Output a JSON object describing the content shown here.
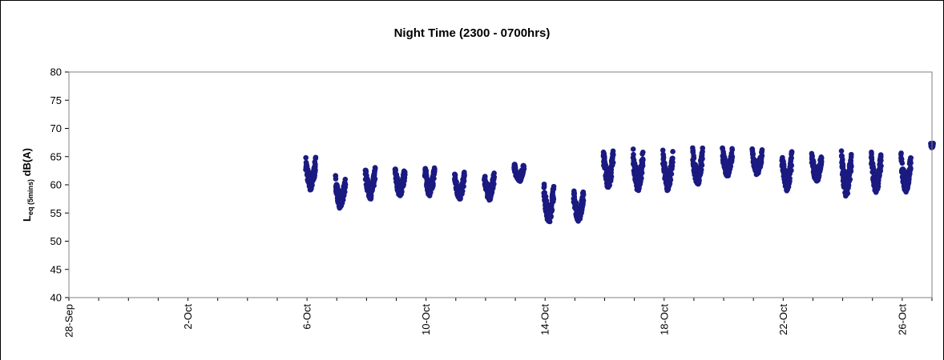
{
  "chart_data": {
    "type": "scatter",
    "title": "Night Time (2300 - 0700hrs)",
    "ylabel_main": "L",
    "ylabel_sub": "eq (5mins)",
    "ylabel_unit": " dB(A)",
    "xlabel": "",
    "ylim": [
      40,
      80
    ],
    "yticks": [
      40,
      45,
      50,
      55,
      60,
      65,
      70,
      75,
      80
    ],
    "xlim": [
      "2023-09-28",
      "2023-10-27"
    ],
    "xtick_labels": [
      "28-Sep",
      "2-Oct",
      "6-Oct",
      "10-Oct",
      "14-Oct",
      "18-Oct",
      "22-Oct",
      "26-Oct"
    ],
    "xtick_dates": [
      "2023-09-28",
      "2023-10-02",
      "2023-10-06",
      "2023-10-10",
      "2023-10-14",
      "2023-10-18",
      "2023-10-22",
      "2023-10-26"
    ],
    "grid": false,
    "legend": "none",
    "marker_color": "#1a1a80",
    "series": [
      {
        "nights": [
          {
            "start": "2023-10-05 23:00",
            "end": "2023-10-06 07:00",
            "low": 59.0,
            "high": 66.0
          },
          {
            "start": "2023-10-06 23:00",
            "end": "2023-10-07 07:00",
            "low": 55.7,
            "high": 62.8
          },
          {
            "start": "2023-10-07 23:00",
            "end": "2023-10-08 07:00",
            "low": 57.5,
            "high": 64.2
          },
          {
            "start": "2023-10-08 23:00",
            "end": "2023-10-09 07:00",
            "low": 58.0,
            "high": 64.3
          },
          {
            "start": "2023-10-09 23:00",
            "end": "2023-10-10 07:00",
            "low": 58.0,
            "high": 64.8
          },
          {
            "start": "2023-10-10 23:00",
            "end": "2023-10-11 07:00",
            "low": 57.4,
            "high": 63.3
          },
          {
            "start": "2023-10-11 23:00",
            "end": "2023-10-12 07:00",
            "low": 57.3,
            "high": 63.3
          },
          {
            "start": "2023-10-12 23:00",
            "end": "2023-10-13 07:00",
            "low": 60.5,
            "high": 64.8
          },
          {
            "start": "2023-10-13 23:00",
            "end": "2023-10-14 07:00",
            "low": 53.3,
            "high": 61.7
          },
          {
            "start": "2023-10-14 23:00",
            "end": "2023-10-15 07:00",
            "low": 53.5,
            "high": 60.3
          },
          {
            "start": "2023-10-15 23:00",
            "end": "2023-10-16 07:00",
            "low": 59.5,
            "high": 67.7
          },
          {
            "start": "2023-10-16 23:00",
            "end": "2023-10-17 07:00",
            "low": 58.8,
            "high": 67.8
          },
          {
            "start": "2023-10-17 23:00",
            "end": "2023-10-18 07:00",
            "low": 59.0,
            "high": 67.2
          },
          {
            "start": "2023-10-18 23:00",
            "end": "2023-10-19 07:00",
            "low": 60.0,
            "high": 67.6
          },
          {
            "start": "2023-10-19 23:00",
            "end": "2023-10-20 07:00",
            "low": 61.5,
            "high": 67.6
          },
          {
            "start": "2023-10-20 23:00",
            "end": "2023-10-21 07:00",
            "low": 61.8,
            "high": 67.2
          },
          {
            "start": "2023-10-21 23:00",
            "end": "2023-10-22 07:00",
            "low": 58.7,
            "high": 67.3
          },
          {
            "start": "2023-10-22 23:00",
            "end": "2023-10-23 07:00",
            "low": 60.5,
            "high": 66.7
          },
          {
            "start": "2023-10-23 23:00",
            "end": "2023-10-24 07:00",
            "low": 58.0,
            "high": 67.5
          },
          {
            "start": "2023-10-24 23:00",
            "end": "2023-10-25 07:00",
            "low": 58.6,
            "high": 67.2
          },
          {
            "start": "2023-10-25 23:00",
            "end": "2023-10-26 07:00",
            "low": 58.7,
            "high": 67.0
          },
          {
            "start": "2023-10-26 23:00",
            "end": "2023-10-27 01:00",
            "low": 66.5,
            "high": 67.5
          }
        ]
      }
    ]
  }
}
